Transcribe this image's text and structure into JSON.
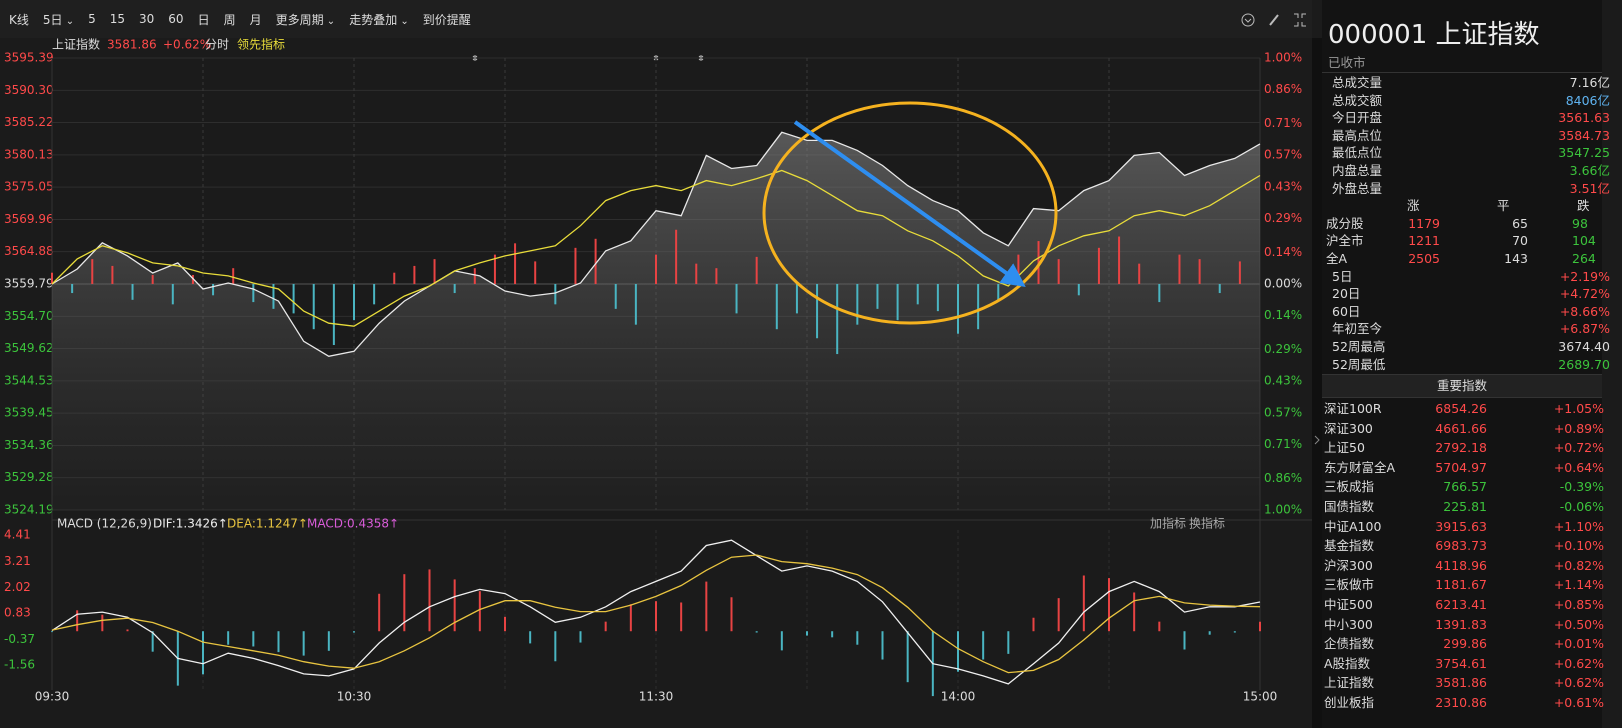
{
  "toolbar": {
    "items": [
      "K线",
      "5日",
      "5",
      "15",
      "30",
      "60",
      "日",
      "周",
      "月",
      "更多周期",
      "走势叠加",
      "到价提醒"
    ]
  },
  "chart_data": [
    {
      "type": "line",
      "legend_price": "3581.86",
      "legend_change": "+0.62%",
      "mode_label": "分时",
      "indicator_label": "领先指标",
      "x": [
        0,
        5,
        10,
        15,
        20,
        25,
        30,
        35,
        40,
        45,
        50,
        55,
        60,
        65,
        70,
        75,
        80,
        85,
        90,
        95,
        100,
        105,
        110,
        115,
        120,
        125,
        130,
        135,
        140,
        145,
        150,
        155,
        160,
        165,
        170,
        175,
        180,
        185,
        190,
        195,
        200,
        205,
        210,
        215,
        220,
        225,
        230,
        235,
        240
      ],
      "series": [
        {
          "name": "上证指数",
          "color": "#e8e8e8",
          "values": [
            3559.79,
            3562.16,
            3566.28,
            3564.22,
            3561.53,
            3563.11,
            3559.0,
            3559.95,
            3559.0,
            3557.1,
            3550.77,
            3548.4,
            3549.19,
            3553.62,
            3557.1,
            3559.47,
            3561.85,
            3561.06,
            3558.68,
            3557.89,
            3558.37,
            3559.95,
            3565.01,
            3566.59,
            3571.34,
            3570.55,
            3580.04,
            3577.98,
            3578.46,
            3583.68,
            3582.41,
            3582.41,
            3580.83,
            3578.46,
            3575.29,
            3572.92,
            3571.34,
            3567.86,
            3565.8,
            3571.66,
            3571.34,
            3574.5,
            3576.08,
            3580.04,
            3580.51,
            3576.88,
            3578.46,
            3579.57,
            3581.86
          ]
        },
        {
          "color": "#e8dc3a",
          "values": [
            3559.79,
            3563.75,
            3565.8,
            3564.69,
            3563.11,
            3562.64,
            3561.53,
            3561.06,
            3559.95,
            3559.0,
            3555.52,
            3553.62,
            3553.15,
            3555.52,
            3557.89,
            3559.47,
            3561.85,
            3563.11,
            3564.22,
            3565.01,
            3565.8,
            3568.97,
            3572.92,
            3574.5,
            3575.29,
            3574.5,
            3576.08,
            3575.29,
            3576.4,
            3577.67,
            3576.08,
            3573.71,
            3571.34,
            3570.55,
            3568.17,
            3566.59,
            3564.22,
            3561.06,
            3559.47,
            3563.43,
            3565.8,
            3567.38,
            3568.17,
            3570.55,
            3571.34,
            3570.55,
            3572.13,
            3574.5,
            3576.88
          ]
        }
      ],
      "bars_x": [
        0,
        4,
        8,
        12,
        16,
        20,
        24,
        28,
        32,
        36,
        40,
        44,
        48,
        52,
        56,
        60,
        64,
        68,
        72,
        76,
        80,
        84,
        88,
        92,
        96,
        100,
        104,
        108,
        112,
        116,
        120,
        124,
        128,
        132,
        136,
        140,
        144,
        148,
        152,
        156,
        160,
        164,
        168,
        172,
        176,
        180,
        184,
        188,
        192,
        196,
        200,
        204,
        208,
        212,
        216,
        220,
        224,
        228,
        232,
        236
      ],
      "bars": [
        0.05,
        -0.04,
        0.11,
        0.08,
        -0.07,
        0.04,
        -0.09,
        0.04,
        -0.05,
        0.07,
        -0.08,
        -0.11,
        -0.13,
        -0.2,
        -0.27,
        -0.16,
        -0.09,
        0.05,
        0.08,
        0.11,
        -0.04,
        0.07,
        0.13,
        0.18,
        0.1,
        -0.09,
        0.16,
        0.2,
        -0.11,
        -0.18,
        0.13,
        0.24,
        0.09,
        0.07,
        -0.13,
        0.12,
        -0.2,
        -0.13,
        -0.24,
        -0.31,
        -0.18,
        -0.11,
        -0.16,
        -0.09,
        -0.12,
        -0.22,
        -0.2,
        -0.07,
        0.13,
        0.19,
        0.11,
        -0.05,
        0.16,
        0.21,
        0.09,
        -0.08,
        0.13,
        0.11,
        -0.04,
        0.1
      ],
      "bar_colors": [
        "#e84343",
        "#4ab5c2"
      ],
      "xlim": [
        0,
        240
      ],
      "xgrid": [
        30,
        60,
        90,
        120,
        150,
        180,
        210
      ],
      "ylim": [
        3524.19,
        3595.39
      ],
      "yticks": [
        3595.39,
        {
          "value": 3590.3,
          "label": "3590.30"
        },
        3585.22,
        3580.13,
        3575.05,
        3569.96,
        3564.88,
        3559.79,
        {
          "value": 3554.7,
          "label": "3554.70"
        },
        3549.62,
        3544.53,
        3539.45,
        3534.36,
        3529.28,
        3524.19
      ],
      "y2lim": [
        -1,
        1
      ],
      "y2ticks": [
        {
          "value": 1,
          "label": "1.00%"
        },
        {
          "value": 0.86,
          "label": "0.86%"
        },
        {
          "value": 0.71,
          "label": "0.71%"
        },
        {
          "value": 0.57,
          "label": "0.57%"
        },
        {
          "value": 0.43,
          "label": "0.43%"
        },
        {
          "value": 0.29,
          "label": "0.29%"
        },
        {
          "value": 0.14,
          "label": "0.14%"
        },
        {
          "value": 0,
          "label": "0.00%"
        },
        {
          "value": -0.14,
          "label": "0.14%"
        },
        {
          "value": -0.29,
          "label": "0.29%"
        },
        {
          "value": -0.43,
          "label": "0.43%"
        },
        {
          "value": -0.57,
          "label": "0.57%"
        },
        {
          "value": -0.71,
          "label": "0.71%"
        },
        {
          "value": -0.86,
          "label": "0.86%"
        },
        {
          "value": -1,
          "label": "1.00%"
        }
      ],
      "grid": true
    },
    {
      "type": "line",
      "title": "MACD (12,26,9)",
      "buttons": [
        "加指标",
        "换指标"
      ],
      "x": [
        0,
        5,
        10,
        15,
        20,
        25,
        30,
        35,
        40,
        45,
        50,
        55,
        60,
        65,
        70,
        75,
        80,
        85,
        90,
        95,
        100,
        105,
        110,
        115,
        120,
        125,
        130,
        135,
        140,
        145,
        150,
        155,
        160,
        165,
        170,
        175,
        180,
        185,
        190,
        195,
        200,
        205,
        210,
        215,
        220,
        225,
        230,
        235,
        240
      ],
      "series": [
        {
          "name": "DIF:1.3426↑",
          "color": "#f0f0f0",
          "values": [
            0.03,
            0.78,
            0.88,
            0.64,
            -0.07,
            -1.25,
            -1.49,
            -1.01,
            -1.25,
            -1.58,
            -1.96,
            -2.05,
            -1.73,
            -0.54,
            0.41,
            1.12,
            1.59,
            1.92,
            1.73,
            1.12,
            0.41,
            0.64,
            1.12,
            1.82,
            2.29,
            2.76,
            3.94,
            4.18,
            3.47,
            2.76,
            3.0,
            2.76,
            2.29,
            1.35,
            -0.07,
            -1.49,
            -1.73,
            -2.05,
            -2.42,
            -1.49,
            -0.54,
            0.88,
            1.82,
            2.29,
            1.82,
            0.88,
            1.12,
            1.12,
            1.3426
          ]
        },
        {
          "name": "DEA:1.1247↑",
          "color": "#e8c440",
          "values": [
            0.05,
            0.3,
            0.5,
            0.6,
            0.4,
            0.0,
            -0.5,
            -0.7,
            -0.9,
            -1.1,
            -1.4,
            -1.6,
            -1.7,
            -1.4,
            -0.9,
            -0.3,
            0.4,
            1.0,
            1.4,
            1.4,
            1.1,
            0.9,
            0.9,
            1.2,
            1.6,
            2.1,
            2.8,
            3.4,
            3.5,
            3.2,
            3.1,
            2.9,
            2.6,
            2.0,
            1.1,
            0.0,
            -0.8,
            -1.4,
            -1.9,
            -1.8,
            -1.3,
            -0.4,
            0.6,
            1.4,
            1.6,
            1.3,
            1.2,
            1.15,
            1.1247
          ]
        }
      ],
      "bars_name": "MACD:0.4358↑",
      "bars_name_color": "#d95cd9",
      "bars": [
        -0.04,
        0.96,
        0.76,
        0.08,
        -0.94,
        -2.5,
        -1.98,
        -0.62,
        -0.7,
        -0.96,
        -1.12,
        -0.9,
        -0.06,
        1.72,
        2.62,
        2.84,
        2.38,
        1.84,
        0.66,
        -0.56,
        -1.38,
        -0.52,
        0.44,
        1.24,
        1.38,
        1.32,
        2.28,
        1.56,
        -0.06,
        -0.88,
        -0.2,
        -0.28,
        -0.62,
        -1.3,
        -2.34,
        -2.98,
        -1.86,
        -1.3,
        -1.04,
        0.62,
        1.52,
        2.56,
        2.44,
        1.78,
        0.44,
        -0.84,
        -0.16,
        -0.06,
        0.4358
      ],
      "bar_colors": [
        "#e84343",
        "#4ab5c2"
      ],
      "xlim": [
        0,
        240
      ],
      "xticks": [
        {
          "value": 0,
          "label": "09:30"
        },
        {
          "value": 60,
          "label": "10:30"
        },
        {
          "value": 120,
          "label": "11:30"
        },
        {
          "value": 180,
          "label": "14:00"
        },
        {
          "value": 240,
          "label": "15:00"
        }
      ],
      "ylim": [
        -2.7,
        4.65
      ],
      "yticks": [
        4.41,
        3.21,
        2.02,
        0.83,
        -0.37,
        -1.56
      ],
      "grid": false
    }
  ],
  "quote": {
    "code": "000001",
    "name": "上证指数",
    "status": "已收市",
    "stats": [
      {
        "label": "总成交量",
        "value": "7.16亿",
        "color": "#dddddd"
      },
      {
        "label": "总成交额",
        "value": "8406亿",
        "color": "#5fb3f0"
      },
      {
        "label": "今日开盘",
        "value": "3561.63",
        "color": "#ff4a4a"
      },
      {
        "label": "最高点位",
        "value": "3584.73",
        "color": "#ff4a4a"
      },
      {
        "label": "最低点位",
        "value": "3547.25",
        "color": "#3cc43c"
      },
      {
        "label": "内盘总量",
        "value": "3.66亿",
        "color": "#3cc43c"
      },
      {
        "label": "外盘总量",
        "value": "3.51亿",
        "color": "#ff4a4a"
      }
    ],
    "breadth_header": [
      "涨",
      "平",
      "跌"
    ],
    "breadth_rows": [
      [
        "成分股",
        "1179",
        "65",
        "98"
      ],
      [
        "沪全市",
        "1211",
        "70",
        "104"
      ],
      [
        "全A",
        "2505",
        "143",
        "264"
      ]
    ],
    "returns": [
      {
        "label": "5日",
        "value": "+2.19%",
        "color": "#ff4a4a"
      },
      {
        "label": "20日",
        "value": "+4.72%",
        "color": "#ff4a4a"
      },
      {
        "label": "60日",
        "value": "+8.66%",
        "color": "#ff4a4a"
      },
      {
        "label": "年初至今",
        "value": "+6.87%",
        "color": "#ff4a4a"
      },
      {
        "label": "52周最高",
        "value": "3674.40",
        "color": "#dddddd"
      },
      {
        "label": "52周最低",
        "value": "2689.70",
        "color": "#3cc43c"
      }
    ]
  },
  "indices": {
    "title": "重要指数",
    "rows": [
      [
        "深证100R",
        "6854.26",
        "+1.05%"
      ],
      [
        "深证300",
        "4661.66",
        "+0.89%"
      ],
      [
        "上证50",
        "2792.18",
        "+0.72%"
      ],
      [
        "东方财富全A",
        "5704.97",
        "+0.64%"
      ],
      [
        "三板成指",
        "766.57",
        "-0.39%"
      ],
      [
        "国债指数",
        "225.81",
        "-0.06%"
      ],
      [
        "中证A100",
        "3915.63",
        "+1.10%"
      ],
      [
        "基金指数",
        "6983.73",
        "+0.10%"
      ],
      [
        "沪深300",
        "4118.96",
        "+0.82%"
      ],
      [
        "三板做市",
        "1181.67",
        "+1.14%"
      ],
      [
        "中证500",
        "6213.41",
        "+0.85%"
      ],
      [
        "中小300",
        "1391.83",
        "+0.50%"
      ],
      [
        "企债指数",
        "299.86",
        "+0.01%"
      ],
      [
        "A股指数",
        "3754.61",
        "+0.62%"
      ],
      [
        "上证指数",
        "3581.86",
        "+0.62%"
      ],
      [
        "创业板指",
        "2310.86",
        "+0.61%"
      ]
    ]
  }
}
